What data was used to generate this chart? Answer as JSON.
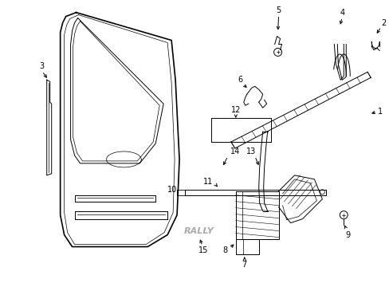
{
  "background_color": "#ffffff",
  "figsize": [
    4.89,
    3.6
  ],
  "dpi": 100,
  "line_color": "#000000",
  "text_color": "#000000",
  "font_size_label": 7,
  "font_size_rally": 7
}
